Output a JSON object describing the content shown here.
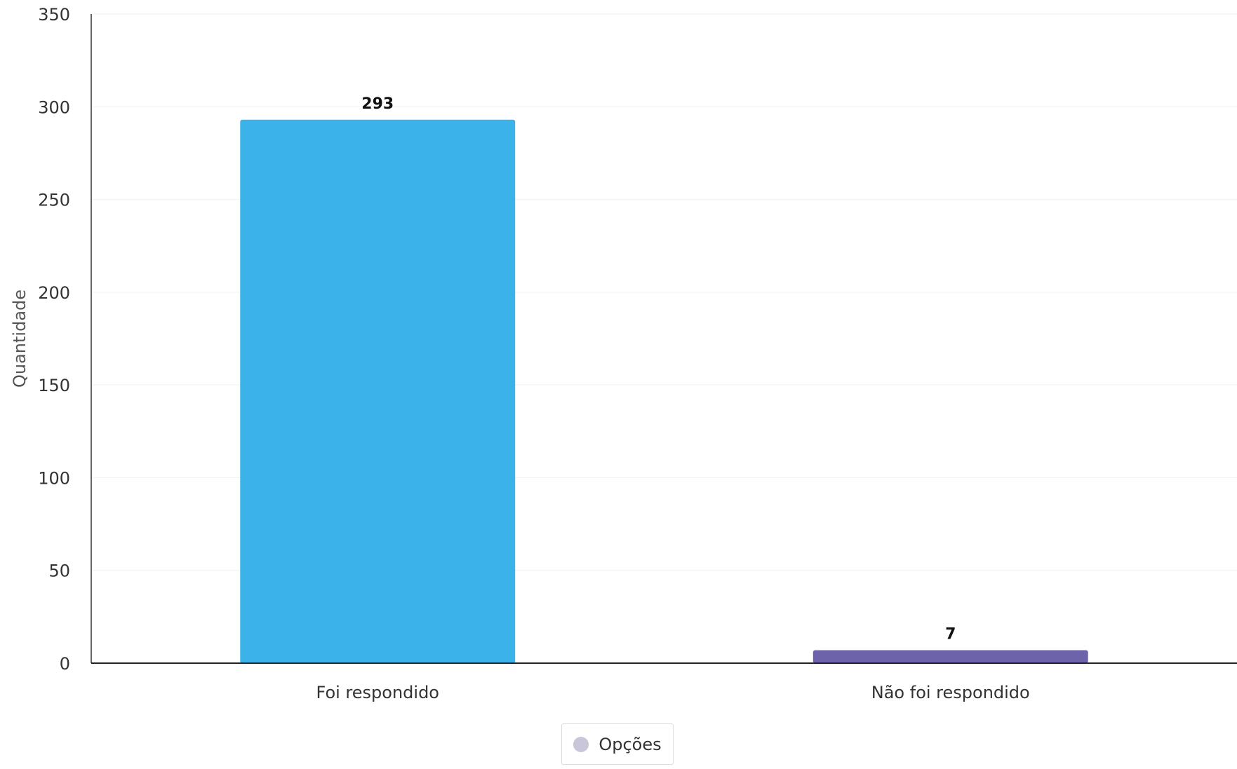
{
  "chart_data": {
    "type": "bar",
    "categories": [
      "Foi respondido",
      "Não foi respondido"
    ],
    "values": [
      293,
      7
    ],
    "data_labels": [
      "293",
      "7"
    ],
    "colors": [
      "#3bb3ea",
      "#6c63ab"
    ],
    "ylabel": "Quantidade",
    "xlabel": "",
    "ylim": [
      0,
      350
    ],
    "yticks": [
      0,
      50,
      100,
      150,
      200,
      250,
      300,
      350
    ],
    "grid": true,
    "legend": {
      "position": "bottom-center",
      "entries": [
        "Opções"
      ],
      "swatch_color": "#c9c6d9"
    }
  }
}
